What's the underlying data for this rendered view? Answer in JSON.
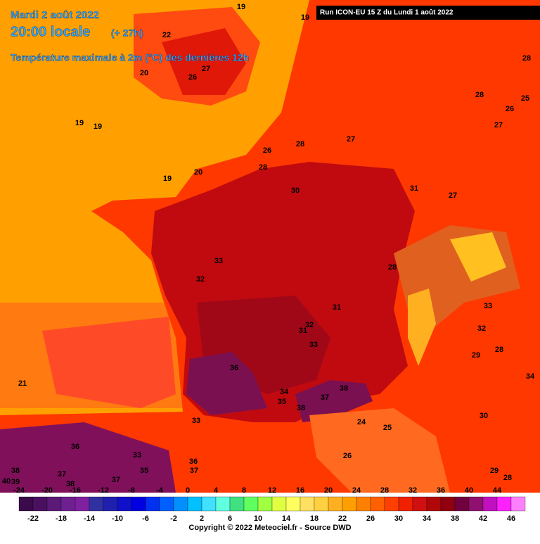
{
  "header": {
    "date": "Mardi 2 août 2022",
    "time": "20:00 locale",
    "offset": "(+ 27h)",
    "title": "Température maximale à 2m (°C) des dernières 12h",
    "run": "Run ICON-EU 15 Z du Lundi 1 août 2022"
  },
  "map": {
    "labels": [
      "19",
      "19",
      "22",
      "20",
      "26",
      "27",
      "19",
      "19",
      "26",
      "28",
      "27",
      "28",
      "28",
      "25",
      "26",
      "27",
      "28",
      "20",
      "19",
      "30",
      "31",
      "27",
      "33",
      "32",
      "28",
      "31",
      "33",
      "32",
      "31",
      "33",
      "32",
      "28",
      "29",
      "36",
      "34",
      "21",
      "38",
      "34",
      "35",
      "37",
      "38",
      "33",
      "24",
      "25",
      "30",
      "36",
      "37",
      "33",
      "37",
      "38",
      "38",
      "36",
      "37",
      "26",
      "29",
      "28",
      "39",
      "40",
      "35"
    ]
  },
  "scale": {
    "top_ticks": [
      -24,
      -20,
      -16,
      -12,
      -8,
      -4,
      0,
      4,
      8,
      12,
      16,
      20,
      24,
      28,
      32,
      36,
      40,
      44
    ],
    "bottom_ticks": [
      -22,
      -18,
      -14,
      -10,
      -6,
      -2,
      2,
      6,
      10,
      14,
      18,
      22,
      26,
      30,
      34,
      38,
      42,
      46
    ],
    "colors": [
      "#3a0a4a",
      "#4a1060",
      "#5c1a78",
      "#6e2090",
      "#8020a0",
      "#3030a0",
      "#2020b0",
      "#1010c8",
      "#0000e0",
      "#0030f0",
      "#0060ff",
      "#0090ff",
      "#00c0ff",
      "#40e0ff",
      "#60ffe0",
      "#40e080",
      "#60ff60",
      "#a0ff40",
      "#e0ff40",
      "#ffff60",
      "#ffe060",
      "#ffd040",
      "#ffb020",
      "#ffa000",
      "#ff8000",
      "#ff6000",
      "#ff4000",
      "#f02000",
      "#d01010",
      "#b00808",
      "#900010",
      "#700040",
      "#901070",
      "#c010c0",
      "#ff20ff",
      "#ff80ff"
    ]
  },
  "footer": {
    "copyright": "Copyright © 2022 Meteociel.fr - Source DWD"
  }
}
